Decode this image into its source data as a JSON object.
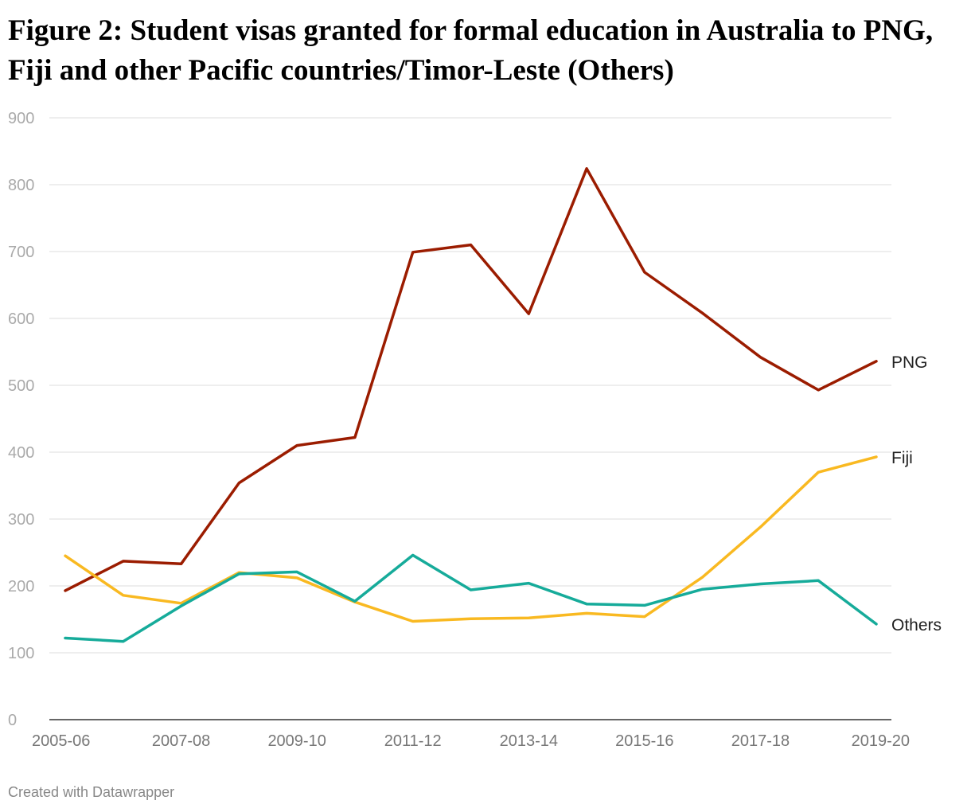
{
  "title": "Figure 2: Student visas granted for formal education in Australia to PNG, Fiji and other Pacific countries/Timor-Leste (Others)",
  "credit": "Created with Datawrapper",
  "chart_data": {
    "type": "line",
    "title": "Figure 2: Student visas granted for formal education in Australia to PNG, Fiji and other Pacific countries/Timor-Leste (Others)",
    "x": [
      "2005-06",
      "2006-07",
      "2007-08",
      "2008-09",
      "2009-10",
      "2010-11",
      "2011-12",
      "2012-13",
      "2013-14",
      "2014-15",
      "2015-16",
      "2016-17",
      "2017-18",
      "2018-19",
      "2019-20"
    ],
    "x_tick_labels": [
      "2005-06",
      "2007-08",
      "2009-10",
      "2011-12",
      "2013-14",
      "2015-16",
      "2017-18",
      "2019-20"
    ],
    "y_ticks": [
      0,
      100,
      200,
      300,
      400,
      500,
      600,
      700,
      800,
      900
    ],
    "ylim": [
      0,
      900
    ],
    "grid": true,
    "legend": "direct labels at line ends",
    "series": [
      {
        "name": "PNG",
        "color": "#9b1c00",
        "values": [
          193,
          237,
          233,
          354,
          410,
          422,
          699,
          710,
          607,
          824,
          669,
          608,
          542,
          493,
          536
        ]
      },
      {
        "name": "Fiji",
        "color": "#f9b921",
        "values": [
          245,
          186,
          174,
          220,
          212,
          176,
          147,
          151,
          152,
          159,
          154,
          213,
          288,
          370,
          393
        ]
      },
      {
        "name": "Others",
        "color": "#16ab9a",
        "values": [
          122,
          117,
          170,
          218,
          221,
          177,
          246,
          194,
          204,
          173,
          171,
          195,
          203,
          208,
          143
        ]
      }
    ]
  }
}
